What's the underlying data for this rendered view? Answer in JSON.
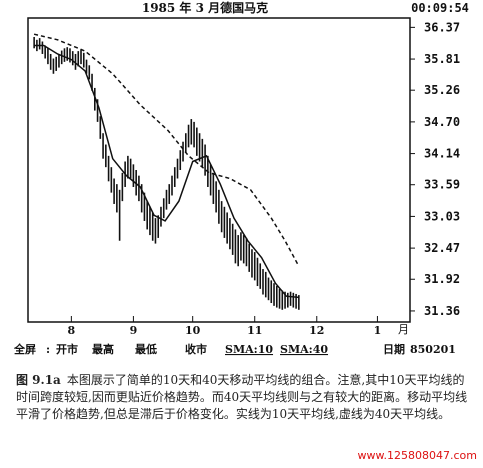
{
  "chart_data": {
    "type": "line",
    "title": "1985 年 3 月德国马克",
    "time_readout": "00:09:54",
    "x_ticks": [
      {
        "label": "8",
        "x": 30
      },
      {
        "label": "9",
        "x": 75
      },
      {
        "label": "10",
        "x": 118
      },
      {
        "label": "11",
        "x": 163
      },
      {
        "label": "12",
        "x": 208
      },
      {
        "label": "1",
        "x": 252
      }
    ],
    "x_unit_label": "月",
    "xlim": [
      0,
      272
    ],
    "ylim": [
      31.2,
      36.5
    ],
    "y_ticks": [
      "36.37",
      "35.81",
      "35.26",
      "34.70",
      "34.14",
      "33.59",
      "33.03",
      "32.47",
      "31.92",
      "31.36"
    ],
    "y_tick_values": [
      36.37,
      35.81,
      35.26,
      34.7,
      34.14,
      33.59,
      33.03,
      32.47,
      31.92,
      31.36
    ],
    "bars": [
      [
        3,
        36.2,
        36.0
      ],
      [
        5,
        36.15,
        35.95
      ],
      [
        7,
        36.18,
        35.98
      ],
      [
        9,
        36.12,
        35.9
      ],
      [
        11,
        36.05,
        35.82
      ],
      [
        13,
        36.0,
        35.72
      ],
      [
        15,
        35.9,
        35.62
      ],
      [
        17,
        35.82,
        35.55
      ],
      [
        19,
        35.85,
        35.6
      ],
      [
        21,
        35.9,
        35.66
      ],
      [
        23,
        35.96,
        35.72
      ],
      [
        25,
        36.0,
        35.76
      ],
      [
        27,
        36.02,
        35.78
      ],
      [
        29,
        36.0,
        35.75
      ],
      [
        31,
        35.95,
        35.7
      ],
      [
        33,
        35.9,
        35.62
      ],
      [
        35,
        35.95,
        35.68
      ],
      [
        37,
        35.98,
        35.72
      ],
      [
        39,
        35.92,
        35.66
      ],
      [
        41,
        35.8,
        35.55
      ],
      [
        43,
        35.7,
        35.45
      ],
      [
        45,
        35.55,
        35.25
      ],
      [
        47,
        35.3,
        34.9
      ],
      [
        49,
        35.1,
        34.7
      ],
      [
        51,
        34.8,
        34.4
      ],
      [
        53,
        34.5,
        34.05
      ],
      [
        55,
        34.3,
        33.9
      ],
      [
        57,
        34.1,
        33.65
      ],
      [
        59,
        33.9,
        33.45
      ],
      [
        61,
        33.7,
        33.25
      ],
      [
        63,
        33.6,
        33.1
      ],
      [
        65,
        33.5,
        32.6
      ],
      [
        67,
        33.8,
        33.3
      ],
      [
        69,
        34.0,
        33.55
      ],
      [
        71,
        34.1,
        33.7
      ],
      [
        73,
        34.05,
        33.7
      ],
      [
        75,
        33.95,
        33.55
      ],
      [
        77,
        33.85,
        33.4
      ],
      [
        79,
        33.75,
        33.3
      ],
      [
        81,
        33.6,
        33.1
      ],
      [
        83,
        33.45,
        32.95
      ],
      [
        85,
        33.3,
        32.8
      ],
      [
        87,
        33.2,
        32.7
      ],
      [
        89,
        33.1,
        32.6
      ],
      [
        91,
        33.0,
        32.55
      ],
      [
        93,
        33.05,
        32.65
      ],
      [
        95,
        33.2,
        32.85
      ],
      [
        97,
        33.35,
        33.0
      ],
      [
        99,
        33.5,
        33.15
      ],
      [
        101,
        33.6,
        33.25
      ],
      [
        103,
        33.75,
        33.4
      ],
      [
        105,
        33.9,
        33.55
      ],
      [
        107,
        34.05,
        33.7
      ],
      [
        109,
        34.2,
        33.85
      ],
      [
        111,
        34.35,
        34.0
      ],
      [
        113,
        34.5,
        34.15
      ],
      [
        115,
        34.65,
        34.25
      ],
      [
        117,
        34.75,
        34.3
      ],
      [
        119,
        34.7,
        34.25
      ],
      [
        121,
        34.6,
        34.1
      ],
      [
        123,
        34.5,
        34.0
      ],
      [
        125,
        34.4,
        33.9
      ],
      [
        127,
        34.3,
        33.75
      ],
      [
        129,
        34.1,
        33.55
      ],
      [
        131,
        33.95,
        33.4
      ],
      [
        133,
        33.8,
        33.25
      ],
      [
        135,
        33.65,
        33.1
      ],
      [
        137,
        33.5,
        32.9
      ],
      [
        139,
        33.3,
        32.75
      ],
      [
        141,
        33.2,
        32.65
      ],
      [
        143,
        33.1,
        32.55
      ],
      [
        145,
        33.0,
        32.45
      ],
      [
        147,
        32.9,
        32.35
      ],
      [
        149,
        32.8,
        32.2
      ],
      [
        151,
        32.7,
        32.15
      ],
      [
        153,
        32.75,
        32.25
      ],
      [
        155,
        32.7,
        32.2
      ],
      [
        157,
        32.65,
        32.15
      ],
      [
        159,
        32.55,
        32.05
      ],
      [
        161,
        32.45,
        31.95
      ],
      [
        163,
        32.4,
        31.9
      ],
      [
        165,
        32.3,
        31.8
      ],
      [
        167,
        32.2,
        31.75
      ],
      [
        169,
        32.1,
        31.65
      ],
      [
        171,
        32.05,
        31.6
      ],
      [
        173,
        31.95,
        31.55
      ],
      [
        175,
        31.9,
        31.5
      ],
      [
        177,
        31.85,
        31.45
      ],
      [
        179,
        31.8,
        31.42
      ],
      [
        181,
        31.75,
        31.4
      ],
      [
        183,
        31.72,
        31.38
      ],
      [
        185,
        31.7,
        31.4
      ],
      [
        187,
        31.68,
        31.42
      ],
      [
        189,
        31.7,
        31.45
      ],
      [
        191,
        31.68,
        31.42
      ],
      [
        193,
        31.66,
        31.4
      ],
      [
        195,
        31.64,
        31.38
      ]
    ],
    "series": [
      {
        "points": [
          [
            3,
            36.05
          ],
          [
            10,
            36.05
          ],
          [
            20,
            35.9
          ],
          [
            30,
            35.8
          ],
          [
            40,
            35.6
          ],
          [
            50,
            34.95
          ],
          [
            60,
            34.05
          ],
          [
            70,
            33.75
          ],
          [
            80,
            33.55
          ],
          [
            90,
            33.05
          ],
          [
            98,
            32.95
          ],
          [
            108,
            33.3
          ],
          [
            118,
            34.0
          ],
          [
            128,
            34.1
          ],
          [
            138,
            33.6
          ],
          [
            148,
            33.0
          ],
          [
            158,
            32.6
          ],
          [
            168,
            32.3
          ],
          [
            178,
            31.85
          ],
          [
            186,
            31.62
          ],
          [
            195,
            31.6
          ]
        ]
      },
      {
        "points": [
          [
            3,
            36.25
          ],
          [
            20,
            36.15
          ],
          [
            40,
            35.95
          ],
          [
            60,
            35.55
          ],
          [
            80,
            35.0
          ],
          [
            100,
            34.55
          ],
          [
            115,
            34.1
          ],
          [
            130,
            33.8
          ],
          [
            145,
            33.7
          ],
          [
            160,
            33.5
          ],
          [
            175,
            33.0
          ],
          [
            185,
            32.6
          ],
          [
            195,
            32.15
          ]
        ]
      }
    ],
    "legend": [
      "SMA:10",
      "SMA:40"
    ]
  },
  "bottom_bar": {
    "items": [
      "全屏",
      "开市",
      "最高",
      "最低",
      "收市",
      "SMA:10",
      "SMA:40"
    ],
    "date_label": "日期",
    "date_value": "850201"
  },
  "caption": {
    "fig": "图 9.1a",
    "text": "本图展示了简单的10天和40天移动平均线的组合。注意,其中10天平均线的时间跨度较短,因而更贴近价格趋势。而40天平均线则与之有较大的距离。移动平均线平滑了价格趋势,但总是滞后于价格变化。实线为10天平均线,虚线为40天平均线。"
  },
  "watermark": "www.125808047.com",
  "colors": {
    "ink": "#111111",
    "paper": "#ffffff",
    "watermark": "#dd1111"
  }
}
